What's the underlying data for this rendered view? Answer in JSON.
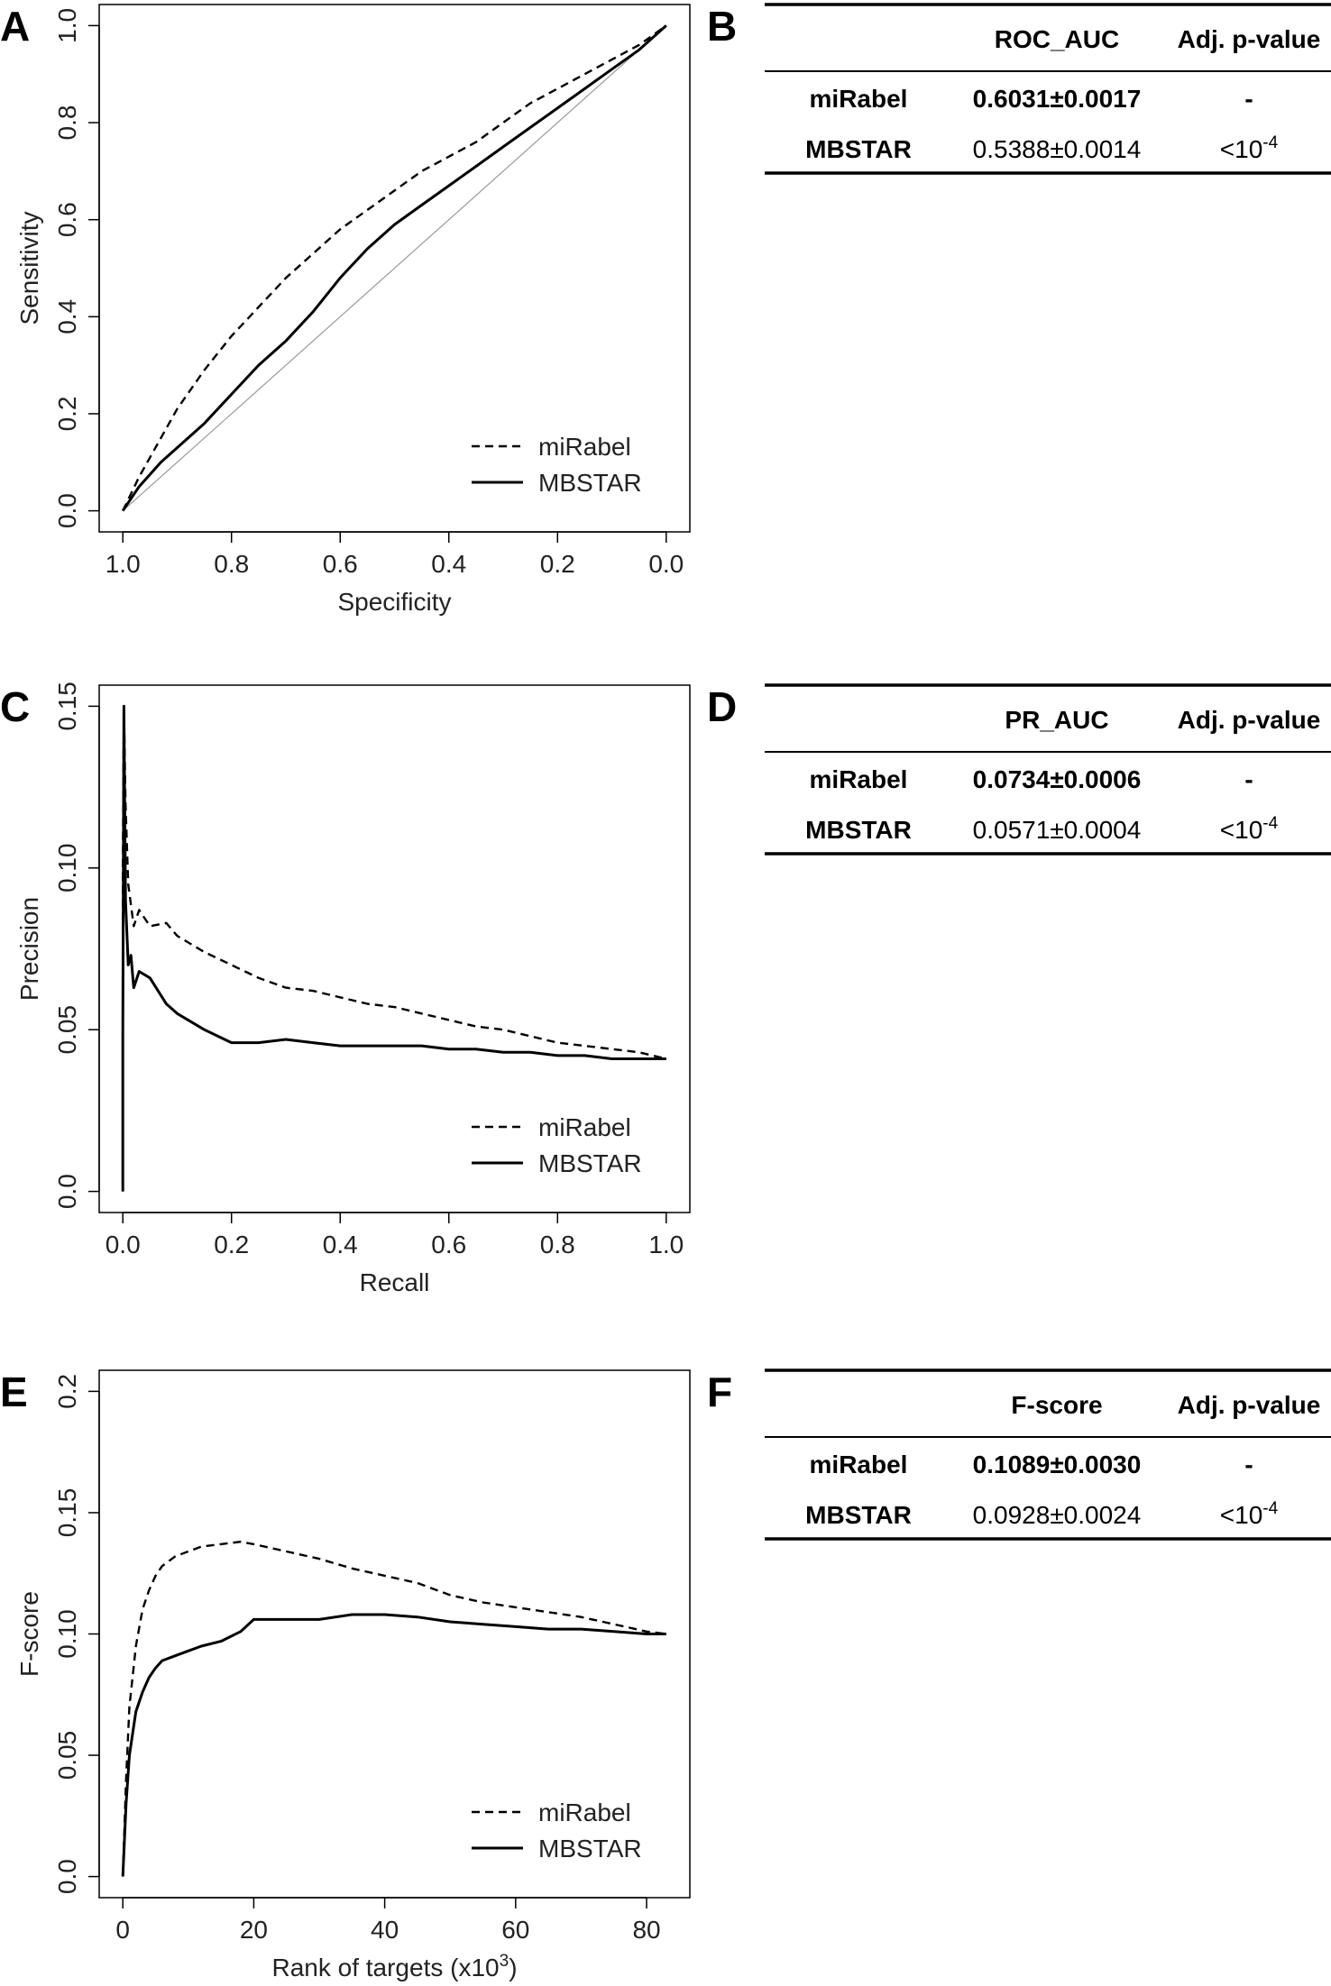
{
  "panels": {
    "A": {
      "letter": "A"
    },
    "B": {
      "letter": "B"
    },
    "C": {
      "letter": "C"
    },
    "D": {
      "letter": "D"
    },
    "E": {
      "letter": "E"
    },
    "F": {
      "letter": "F"
    }
  },
  "chart_data": [
    {
      "type": "line",
      "panel": "A",
      "xlabel": "Specificity",
      "ylabel": "Sensitivity",
      "xlim": [
        1.0,
        0.0
      ],
      "ylim": [
        0.0,
        1.0
      ],
      "xticks": [
        "1.0",
        "0.8",
        "0.6",
        "0.4",
        "0.2",
        "0.0"
      ],
      "xtick_values": [
        1.0,
        0.8,
        0.6,
        0.4,
        0.2,
        0.0
      ],
      "yticks": [
        "0.0",
        "0.2",
        "0.4",
        "0.6",
        "0.8",
        "1.0"
      ],
      "ytick_values": [
        0.0,
        0.2,
        0.4,
        0.6,
        0.8,
        1.0
      ],
      "reference_line": [
        [
          1.0,
          0.0
        ],
        [
          0.0,
          1.0
        ]
      ],
      "legend": [
        "miRabel",
        "MBSTAR"
      ],
      "legend_position": "bottom-right",
      "series": [
        {
          "name": "miRabel",
          "style": "dashed",
          "x": [
            1.0,
            0.97,
            0.93,
            0.9,
            0.85,
            0.8,
            0.75,
            0.7,
            0.65,
            0.6,
            0.55,
            0.5,
            0.45,
            0.4,
            0.35,
            0.3,
            0.25,
            0.2,
            0.15,
            0.1,
            0.05,
            0.0
          ],
          "y": [
            0.0,
            0.07,
            0.15,
            0.21,
            0.29,
            0.36,
            0.42,
            0.48,
            0.53,
            0.58,
            0.62,
            0.66,
            0.7,
            0.73,
            0.76,
            0.8,
            0.84,
            0.87,
            0.9,
            0.93,
            0.96,
            1.0
          ]
        },
        {
          "name": "MBSTAR",
          "style": "solid",
          "x": [
            1.0,
            0.97,
            0.93,
            0.9,
            0.85,
            0.8,
            0.75,
            0.7,
            0.65,
            0.6,
            0.55,
            0.5,
            0.45,
            0.4,
            0.35,
            0.3,
            0.25,
            0.2,
            0.15,
            0.1,
            0.05,
            0.0
          ],
          "y": [
            0.0,
            0.05,
            0.1,
            0.13,
            0.18,
            0.24,
            0.3,
            0.35,
            0.41,
            0.48,
            0.54,
            0.59,
            0.63,
            0.67,
            0.71,
            0.75,
            0.79,
            0.83,
            0.87,
            0.91,
            0.95,
            1.0
          ]
        }
      ]
    },
    {
      "type": "line",
      "panel": "C",
      "xlabel": "Recall",
      "ylabel": "Precision",
      "xlim": [
        0.0,
        1.0
      ],
      "ylim": [
        0.0,
        0.15
      ],
      "xticks": [
        "0.0",
        "0.2",
        "0.4",
        "0.6",
        "0.8",
        "1.0"
      ],
      "xtick_values": [
        0.0,
        0.2,
        0.4,
        0.6,
        0.8,
        1.0
      ],
      "yticks": [
        "0.0",
        "0.05",
        "0.10",
        "0.15"
      ],
      "ytick_values": [
        0.0,
        0.05,
        0.1,
        0.15
      ],
      "legend": [
        "miRabel",
        "MBSTAR"
      ],
      "legend_position": "bottom-right",
      "series": [
        {
          "name": "miRabel",
          "style": "dashed",
          "x": [
            0.0,
            0.0,
            0.002,
            0.005,
            0.01,
            0.02,
            0.03,
            0.05,
            0.08,
            0.1,
            0.15,
            0.2,
            0.25,
            0.3,
            0.35,
            0.4,
            0.45,
            0.5,
            0.55,
            0.6,
            0.65,
            0.7,
            0.75,
            0.8,
            0.85,
            0.9,
            0.95,
            1.0
          ],
          "y": [
            0.0,
            0.1,
            0.15,
            0.12,
            0.095,
            0.082,
            0.087,
            0.082,
            0.083,
            0.079,
            0.074,
            0.07,
            0.066,
            0.063,
            0.062,
            0.06,
            0.058,
            0.057,
            0.055,
            0.053,
            0.051,
            0.05,
            0.048,
            0.046,
            0.045,
            0.044,
            0.043,
            0.041
          ]
        },
        {
          "name": "MBSTAR",
          "style": "solid",
          "x": [
            0.0,
            0.0,
            0.002,
            0.005,
            0.01,
            0.015,
            0.02,
            0.03,
            0.05,
            0.08,
            0.1,
            0.15,
            0.2,
            0.25,
            0.3,
            0.35,
            0.4,
            0.45,
            0.5,
            0.55,
            0.6,
            0.65,
            0.7,
            0.75,
            0.8,
            0.85,
            0.9,
            0.95,
            1.0
          ],
          "y": [
            0.0,
            0.05,
            0.15,
            0.09,
            0.07,
            0.073,
            0.063,
            0.068,
            0.066,
            0.058,
            0.055,
            0.05,
            0.046,
            0.046,
            0.047,
            0.046,
            0.045,
            0.045,
            0.045,
            0.045,
            0.044,
            0.044,
            0.043,
            0.043,
            0.042,
            0.042,
            0.041,
            0.041,
            0.041
          ]
        }
      ]
    },
    {
      "type": "line",
      "panel": "E",
      "xlabel": "Rank of targets (x10",
      "xlabel_sup": "3",
      "xlabel_end": ")",
      "ylabel": "F-score",
      "xlim": [
        0,
        83
      ],
      "ylim": [
        0.0,
        0.2
      ],
      "xticks": [
        "0",
        "20",
        "40",
        "60",
        "80"
      ],
      "xtick_values": [
        0,
        20,
        40,
        60,
        80
      ],
      "yticks": [
        "0.0",
        "0.05",
        "0.10",
        "0.15",
        "0.2"
      ],
      "ytick_values": [
        0.0,
        0.05,
        0.1,
        0.15,
        0.2
      ],
      "legend": [
        "miRabel",
        "MBSTAR"
      ],
      "legend_position": "bottom-right",
      "series": [
        {
          "name": "miRabel",
          "style": "dashed",
          "x": [
            0,
            0.5,
            1,
            2,
            3,
            4,
            5,
            6,
            8,
            10,
            12,
            15,
            18,
            20,
            25,
            30,
            35,
            40,
            45,
            50,
            55,
            60,
            65,
            70,
            75,
            80,
            83
          ],
          "y": [
            0.0,
            0.04,
            0.07,
            0.095,
            0.11,
            0.118,
            0.124,
            0.128,
            0.132,
            0.134,
            0.136,
            0.137,
            0.138,
            0.137,
            0.134,
            0.131,
            0.127,
            0.124,
            0.121,
            0.116,
            0.113,
            0.111,
            0.109,
            0.107,
            0.104,
            0.101,
            0.1
          ]
        },
        {
          "name": "MBSTAR",
          "style": "solid",
          "x": [
            0,
            0.5,
            1,
            2,
            3,
            4,
            5,
            6,
            8,
            10,
            12,
            15,
            18,
            20,
            25,
            30,
            35,
            40,
            45,
            50,
            55,
            60,
            65,
            70,
            75,
            80,
            83
          ],
          "y": [
            0.0,
            0.03,
            0.05,
            0.068,
            0.076,
            0.082,
            0.086,
            0.089,
            0.091,
            0.093,
            0.095,
            0.097,
            0.101,
            0.106,
            0.106,
            0.106,
            0.108,
            0.108,
            0.107,
            0.105,
            0.104,
            0.103,
            0.102,
            0.102,
            0.101,
            0.1,
            0.1
          ]
        }
      ]
    }
  ],
  "tables": [
    {
      "panel": "B",
      "headers": [
        "",
        "ROC_AUC",
        "Adj. p-value"
      ],
      "rows": [
        {
          "method": "miRabel",
          "value": "0.6031±0.0017",
          "p": "-",
          "p_sup": ""
        },
        {
          "method": "MBSTAR",
          "value": "0.5388±0.0014",
          "p": "<10",
          "p_sup": "-4"
        }
      ]
    },
    {
      "panel": "D",
      "headers": [
        "",
        "PR_AUC",
        "Adj. p-value"
      ],
      "rows": [
        {
          "method": "miRabel",
          "value": "0.0734±0.0006",
          "p": "-",
          "p_sup": ""
        },
        {
          "method": "MBSTAR",
          "value": "0.0571±0.0004",
          "p": "<10",
          "p_sup": "-4"
        }
      ]
    },
    {
      "panel": "F",
      "headers": [
        "",
        "F-score",
        "Adj. p-value"
      ],
      "rows": [
        {
          "method": "miRabel",
          "value": "0.1089±0.0030",
          "p": "-",
          "p_sup": ""
        },
        {
          "method": "MBSTAR",
          "value": "0.0928±0.0024",
          "p": "<10",
          "p_sup": "-4"
        }
      ]
    }
  ]
}
